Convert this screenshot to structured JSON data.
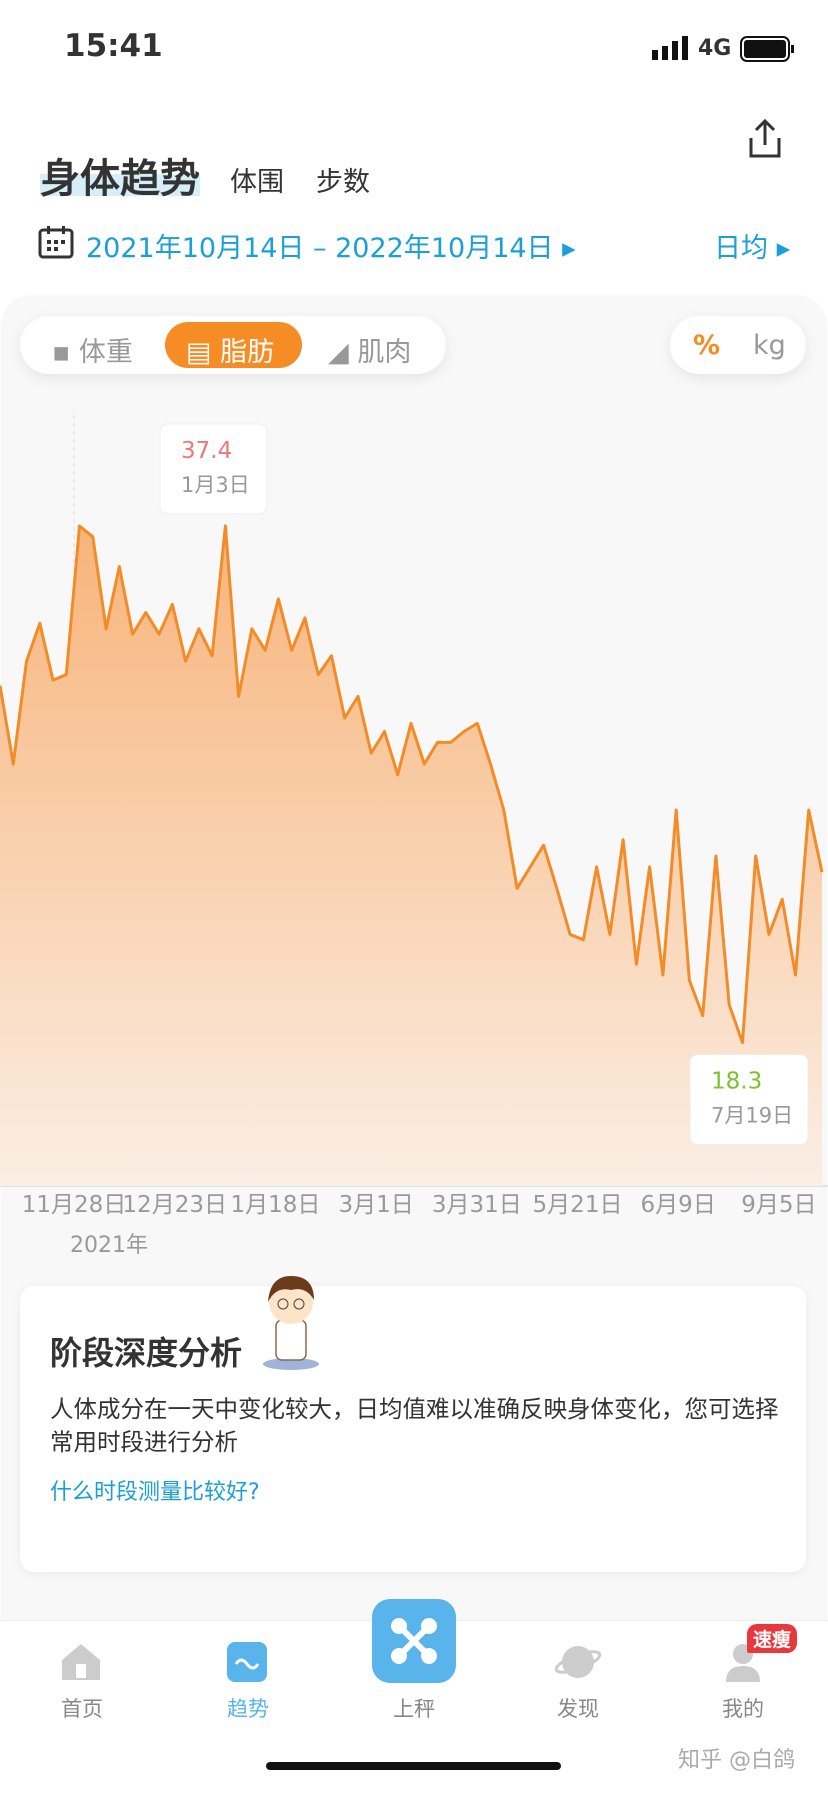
{
  "status_bar": {
    "time": "15:41",
    "network": "4G"
  },
  "header": {
    "tabs": [
      "身体趋势",
      "体围",
      "步数"
    ]
  },
  "date_range": {
    "start": "2021年10月14日",
    "separator": "–",
    "end": "2022年10月14日",
    "mode": "日均"
  },
  "metric_tabs": [
    "体重",
    "脂肪",
    "肌肉"
  ],
  "unit_toggle": [
    "%",
    "kg"
  ],
  "chart_data": {
    "type": "line",
    "color": "#f28c28",
    "values": [
      31.5,
      28.6,
      32.4,
      33.8,
      31.7,
      31.9,
      37.4,
      37.0,
      33.6,
      35.9,
      33.4,
      34.2,
      33.4,
      34.5,
      32.4,
      33.6,
      32.6,
      37.4,
      31.1,
      33.6,
      32.8,
      34.7,
      32.8,
      34.0,
      31.9,
      32.6,
      30.3,
      31.1,
      29.0,
      29.8,
      28.2,
      30.1,
      28.6,
      29.4,
      29.4,
      29.8,
      30.1,
      28.6,
      26.9,
      24.0,
      24.8,
      25.6,
      24.0,
      22.3,
      22.1,
      24.8,
      22.3,
      25.8,
      21.2,
      24.8,
      20.8,
      26.9,
      20.6,
      19.3,
      25.2,
      19.7,
      18.3,
      25.2,
      22.3,
      23.6,
      20.8,
      26.9,
      24.6
    ],
    "ylim": [
      13,
      42.5
    ],
    "x_labels": [
      "11月28日",
      "12月23日",
      "1月18日",
      "3月1日",
      "3月31日",
      "5月21日",
      "6月9日",
      "9月5日"
    ],
    "year_label": "2021年",
    "annotations": [
      {
        "value": 37.4,
        "label": "1月3日"
      },
      {
        "value": 18.3,
        "label": "7月19日"
      }
    ]
  },
  "analysis_card": {
    "title": "阶段深度分析",
    "body": "人体成分在一天中变化较大，日均值难以准确反映身体变化，您可选择常用时段进行分析",
    "link": "什么时段测量比较好?"
  },
  "bottom_nav": {
    "items": [
      "首页",
      "趋势",
      "上秤",
      "发现",
      "我的"
    ],
    "badge": "速瘦"
  },
  "watermark": "知乎 @白鸽"
}
